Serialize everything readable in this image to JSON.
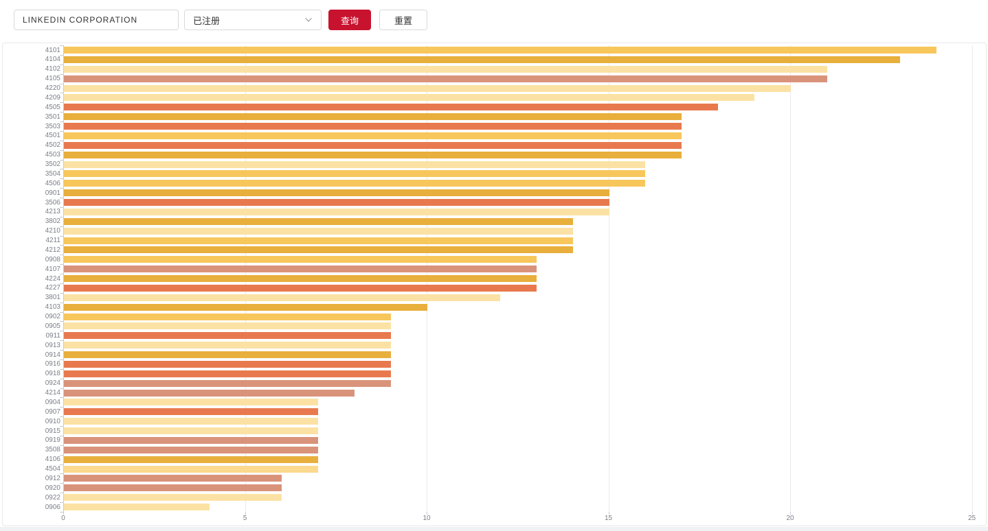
{
  "toolbar": {
    "company_input": {
      "value": "LINKEDIN CORPORATION"
    },
    "status_select": {
      "value": "已注册"
    },
    "query_button_label": "查询",
    "reset_button_label": "重置",
    "accent_color": "#c8132f"
  },
  "chart_data": {
    "type": "bar",
    "orientation": "horizontal",
    "title": "",
    "xlabel": "",
    "ylabel": "",
    "xlim": [
      0,
      25
    ],
    "x_ticks": [
      0,
      5,
      10,
      15,
      20,
      25
    ],
    "grid": true,
    "legend": false,
    "palette": {
      "pale": "#FBE2A4",
      "light": "#FBD98F",
      "amber": "#F7C75C",
      "gold": "#E8AF3C",
      "salmon": "#D9937B",
      "red": "#E8794E"
    },
    "categories": [
      "4101",
      "4104",
      "4102",
      "4105",
      "4220",
      "4209",
      "4505",
      "3501",
      "3503",
      "4501",
      "4502",
      "4503",
      "3502",
      "3504",
      "4506",
      "0901",
      "3506",
      "4213",
      "3802",
      "4210",
      "4211",
      "4212",
      "0908",
      "4107",
      "4224",
      "4227",
      "3801",
      "4103",
      "0902",
      "0905",
      "0911",
      "0913",
      "0914",
      "0916",
      "0918",
      "0924",
      "4214",
      "0904",
      "0907",
      "0910",
      "0915",
      "0919",
      "3508",
      "4106",
      "4504",
      "0912",
      "0920",
      "0922",
      "0906"
    ],
    "values": [
      24,
      23,
      21,
      21,
      20,
      19,
      18,
      17,
      17,
      17,
      17,
      17,
      16,
      16,
      16,
      15,
      15,
      15,
      14,
      14,
      14,
      14,
      13,
      13,
      13,
      13,
      12,
      10,
      9,
      9,
      9,
      9,
      9,
      9,
      9,
      9,
      8,
      7,
      7,
      7,
      7,
      7,
      7,
      7,
      7,
      6,
      6,
      6,
      4
    ],
    "colors": [
      "amber",
      "gold",
      "pale",
      "salmon",
      "pale",
      "pale",
      "red",
      "gold",
      "red",
      "amber",
      "red",
      "gold",
      "pale",
      "amber",
      "amber",
      "gold",
      "red",
      "pale",
      "gold",
      "pale",
      "amber",
      "gold",
      "amber",
      "salmon",
      "gold",
      "red",
      "pale",
      "gold",
      "amber",
      "pale",
      "red",
      "pale",
      "gold",
      "red",
      "red",
      "salmon",
      "salmon",
      "pale",
      "red",
      "pale",
      "pale",
      "salmon",
      "salmon",
      "gold",
      "light",
      "salmon",
      "salmon",
      "pale",
      "pale"
    ]
  }
}
